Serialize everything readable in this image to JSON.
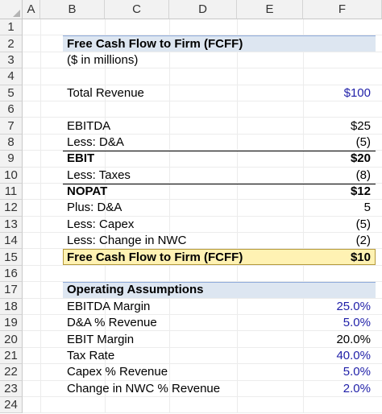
{
  "columns": [
    "A",
    "B",
    "C",
    "D",
    "E",
    "F"
  ],
  "rows": [
    {
      "num": "1"
    },
    {
      "num": "2",
      "label": "Free Cash Flow to Firm (FCFF)",
      "style": "title"
    },
    {
      "num": "3",
      "label": "($ in millions)"
    },
    {
      "num": "4"
    },
    {
      "num": "5",
      "label": "Total Revenue",
      "value": "$100",
      "blue": true
    },
    {
      "num": "6"
    },
    {
      "num": "7",
      "label": "EBITDA",
      "value": "$25"
    },
    {
      "num": "8",
      "label": "Less: D&A",
      "value": "(5)"
    },
    {
      "num": "9",
      "label": "EBIT",
      "value": "$20",
      "bold": true,
      "topline": true
    },
    {
      "num": "10",
      "label": "Less: Taxes",
      "value": "(8)"
    },
    {
      "num": "11",
      "label": "NOPAT",
      "value": "$12",
      "bold": true,
      "topline": true
    },
    {
      "num": "12",
      "label": "Plus: D&A",
      "value": "5"
    },
    {
      "num": "13",
      "label": "Less: Capex",
      "value": "(5)"
    },
    {
      "num": "14",
      "label": "Less: Change in NWC",
      "value": "(2)"
    },
    {
      "num": "15",
      "label": "Free Cash Flow to Firm (FCFF)",
      "value": "$10",
      "bold": true,
      "style": "highlight"
    },
    {
      "num": "16"
    },
    {
      "num": "17",
      "label": "Operating Assumptions",
      "style": "title"
    },
    {
      "num": "18",
      "label": "EBITDA Margin",
      "value": "25.0%",
      "blue": true
    },
    {
      "num": "19",
      "label": "D&A % Revenue",
      "value": "5.0%",
      "blue": true
    },
    {
      "num": "20",
      "label": "EBIT Margin",
      "value": "20.0%"
    },
    {
      "num": "21",
      "label": "Tax Rate",
      "value": "40.0%",
      "blue": true
    },
    {
      "num": "22",
      "label": "Capex % Revenue",
      "value": "5.0%",
      "blue": true
    },
    {
      "num": "23",
      "label": "Change in NWC % Revenue",
      "value": "2.0%",
      "blue": true
    },
    {
      "num": "24"
    }
  ]
}
